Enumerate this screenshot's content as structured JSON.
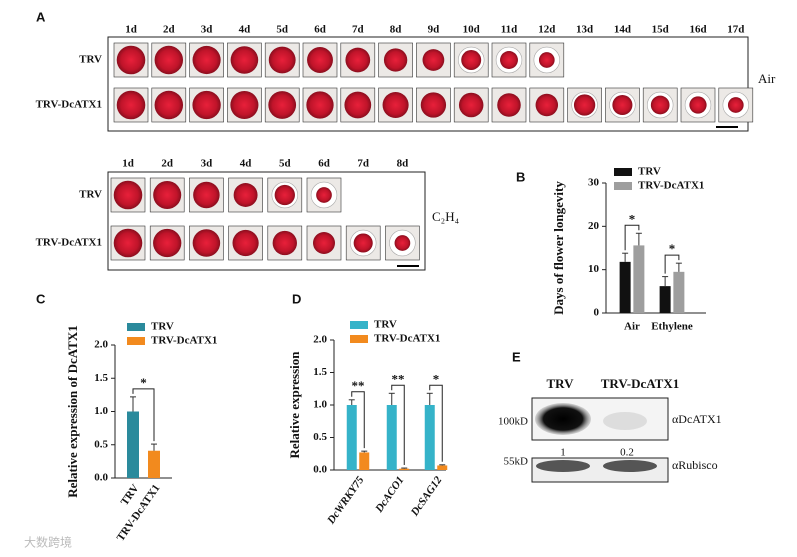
{
  "panel_a": {
    "label": "A",
    "air": {
      "days": [
        "1d",
        "2d",
        "3d",
        "4d",
        "5d",
        "6d",
        "7d",
        "8d",
        "9d",
        "10d",
        "11d",
        "12d",
        "13d",
        "14d",
        "15d",
        "16d",
        "17d"
      ],
      "rows": [
        "TRV",
        "TRV-DcATX1"
      ],
      "condition": "Air"
    },
    "ethylene": {
      "days": [
        "1d",
        "2d",
        "3d",
        "4d",
        "5d",
        "6d",
        "7d",
        "8d"
      ],
      "rows": [
        "TRV",
        "TRV-DcATX1"
      ],
      "condition": "C₂H₄"
    }
  },
  "chart_data": [
    {
      "type": "bar",
      "label": "B",
      "ylabel": "Days of flower longevity",
      "categories": [
        "Air",
        "Ethylene"
      ],
      "series": [
        {
          "name": "TRV",
          "color": "#111111",
          "values": [
            11.8,
            6.2
          ],
          "errors": [
            2.0,
            2.2
          ]
        },
        {
          "name": "TRV-DcATX1",
          "color": "#9e9e9e",
          "values": [
            15.6,
            9.5
          ],
          "errors": [
            2.8,
            2.0
          ]
        }
      ],
      "ylim": [
        0,
        30
      ],
      "yticks": [
        0,
        10,
        20,
        30
      ],
      "annotations": [
        "*",
        "*"
      ]
    },
    {
      "type": "bar",
      "label": "C",
      "ylabel": "Relative expression of DcATX1",
      "categories": [
        "TRV",
        "TRV-DcATX1"
      ],
      "values": [
        1.0,
        0.41
      ],
      "errors": [
        0.22,
        0.1
      ],
      "colors": [
        "#2a8a9c",
        "#f28a1e"
      ],
      "ylim": [
        0,
        2
      ],
      "yticks": [
        {
          "value": 0,
          "label": "0.0"
        },
        0.5,
        {
          "value": 1,
          "label": "1.0"
        },
        1.5,
        {
          "value": 2,
          "label": "2.0"
        }
      ],
      "annotations": [
        "*"
      ]
    },
    {
      "type": "bar",
      "label": "D",
      "ylabel": "Relative expression",
      "categories": [
        "DcWRKY75",
        "DcACO1",
        "DcSAG12"
      ],
      "series": [
        {
          "name": "TRV",
          "color": "#35b3c9",
          "values": [
            1.0,
            1.0,
            1.0
          ],
          "errors": [
            0.08,
            0.18,
            0.18
          ]
        },
        {
          "name": "TRV-DcATX1",
          "color": "#f28a1e",
          "values": [
            0.27,
            0.02,
            0.07
          ],
          "errors": [
            0.02,
            0.01,
            0.01
          ]
        }
      ],
      "ylim": [
        0,
        2
      ],
      "yticks": [
        {
          "value": 0,
          "label": "0.0"
        },
        0.5,
        {
          "value": 1,
          "label": "1.0"
        },
        1.5,
        {
          "value": 2,
          "label": "2.0"
        }
      ],
      "annotations": [
        "**",
        "**",
        "*"
      ]
    }
  ],
  "panel_e": {
    "label": "E",
    "columns": [
      "TRV",
      "TRV-DcATX1"
    ],
    "blots": [
      {
        "size": "100kD",
        "antibody": "αDcATX1",
        "quantities": [
          "1",
          "0.2"
        ]
      },
      {
        "size": "55kD",
        "antibody": "αRubisco"
      }
    ]
  },
  "watermark": "大数跨境"
}
